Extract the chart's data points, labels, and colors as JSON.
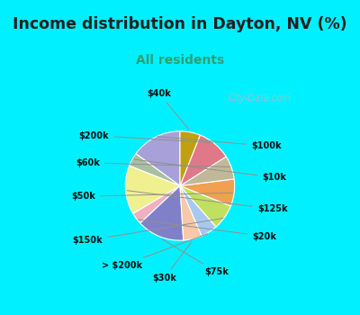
{
  "title": "Income distribution in Dayton, NV (%)",
  "subtitle": "All residents",
  "labels": [
    "$100k",
    "$10k",
    "$125k",
    "$20k",
    "$75k",
    "$30k",
    "> $200k",
    "$150k",
    "$50k",
    "$60k",
    "$200k",
    "$40k"
  ],
  "sizes": [
    15.0,
    4.0,
    14.5,
    3.5,
    14.0,
    5.5,
    5.0,
    7.5,
    8.0,
    7.0,
    10.0,
    6.0
  ],
  "colors": [
    "#a8a0d8",
    "#a8c0a0",
    "#f0f090",
    "#f0b0c0",
    "#8080c8",
    "#f8c8a8",
    "#a8c8f0",
    "#c0e060",
    "#f0a050",
    "#c0b898",
    "#e07888",
    "#c0a010"
  ],
  "background_top": "#00f0ff",
  "background_chart": "#e8f5ee",
  "title_color": "#202020",
  "subtitle_color": "#30a070",
  "watermark": "City-Data.com",
  "label_color": "#101010",
  "chart_border_color": "#00f0ff"
}
